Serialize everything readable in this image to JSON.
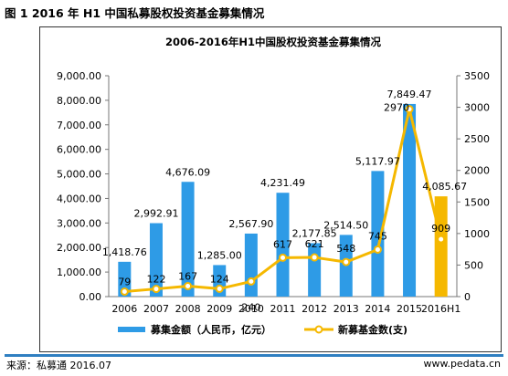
{
  "figure_title": "图 1 2016 年 H1 中国私募股权投资基金募集情况",
  "source": "来源：私募通 2016.07",
  "website": "www.pedata.cn",
  "chart_data": {
    "type": "bar+line",
    "title": "2006-2016年H1中国股权投资基金募集情况",
    "categories": [
      "2006",
      "2007",
      "2008",
      "2009",
      "2010",
      "2011",
      "2012",
      "2013",
      "2014",
      "2015",
      "2016H1"
    ],
    "series": [
      {
        "name": "募集金额（人民币，亿元）",
        "type": "bar",
        "axis": "left",
        "color": "#2e9be6",
        "highlight_last_color": "#f5b800",
        "values": [
          1418.76,
          2992.91,
          4676.09,
          1285.0,
          2567.9,
          4231.49,
          2177.85,
          2514.5,
          5117.97,
          7849.47,
          4085.67
        ],
        "labels": [
          "1,418.76",
          "2,992.91",
          "4,676.09",
          "1,285.00",
          "2,567.90",
          "4,231.49",
          "2,177.85",
          "2,514.50",
          "5,117.97",
          "7,849.47",
          "4,085.67"
        ]
      },
      {
        "name": "新募基金数(支)",
        "type": "line",
        "axis": "right",
        "color": "#f5b800",
        "values": [
          79,
          122,
          167,
          124,
          240,
          617,
          621,
          548,
          745,
          2970,
          909
        ],
        "labels": [
          "79",
          "122",
          "167",
          "124",
          "240",
          "617",
          "621",
          "548",
          "745",
          "2970",
          "909"
        ]
      }
    ],
    "y_left": {
      "min": 0,
      "max": 9000,
      "step": 1000,
      "ticks": [
        "0.00",
        "1,000.00",
        "2,000.00",
        "3,000.00",
        "4,000.00",
        "5,000.00",
        "6,000.00",
        "7,000.00",
        "8,000.00",
        "9,000.00"
      ]
    },
    "y_right": {
      "min": 0,
      "max": 3500,
      "step": 500,
      "ticks": [
        "0",
        "500",
        "1000",
        "1500",
        "2000",
        "2500",
        "3000",
        "3500"
      ]
    },
    "grid": false,
    "legend_position": "bottom"
  }
}
